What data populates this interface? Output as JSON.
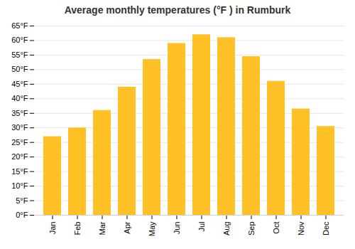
{
  "chart_data": {
    "type": "bar",
    "title": "Average monthly temperatures (°F ) in Rumburk",
    "categories": [
      "Jan",
      "Feb",
      "Mar",
      "Apr",
      "May",
      "Jun",
      "Jul",
      "Aug",
      "Sep",
      "Oct",
      "Nov",
      "Dec"
    ],
    "values": [
      27,
      30,
      36,
      44,
      53.5,
      59,
      62,
      61,
      54.5,
      46,
      36.5,
      30.5
    ],
    "color": "#FFC125",
    "ylim": [
      0,
      65
    ],
    "yticks": [
      {
        "value": 0,
        "label": "0°F"
      },
      {
        "value": 5,
        "label": "5°F"
      },
      {
        "value": 10,
        "label": "10°F"
      },
      {
        "value": 15,
        "label": "15°F"
      },
      {
        "value": 20,
        "label": "20°F"
      },
      {
        "value": 25,
        "label": "25°F"
      },
      {
        "value": 30,
        "label": "30°F"
      },
      {
        "value": 35,
        "label": "35°F"
      },
      {
        "value": 40,
        "label": "40°F"
      },
      {
        "value": 45,
        "label": "45°F"
      },
      {
        "value": 50,
        "label": "50°F"
      },
      {
        "value": 55,
        "label": "55°F"
      },
      {
        "value": 60,
        "label": "60°F"
      },
      {
        "value": 65,
        "label": "65°F"
      }
    ],
    "grid": true
  }
}
